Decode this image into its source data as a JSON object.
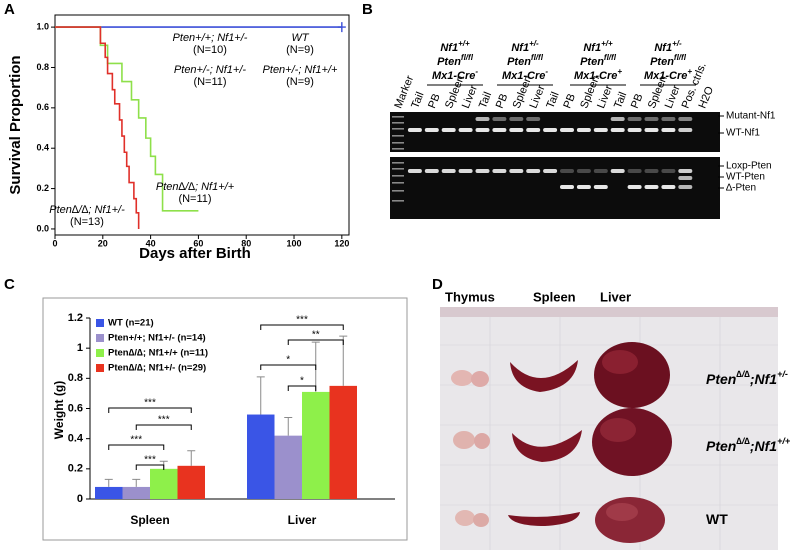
{
  "panel_labels": [
    "A",
    "B",
    "C",
    "D"
  ],
  "chart_data": [
    {
      "type": "step",
      "xlabel": "Days after Birth",
      "ylabel": "Survival Proportion",
      "xlim": [
        0,
        123
      ],
      "ylim": [
        -0.03,
        1.06
      ],
      "xticks": [
        0,
        20,
        40,
        60,
        80,
        100,
        120
      ],
      "yticks": [
        {
          "value": 0,
          "label": "0.0"
        },
        {
          "value": 0.2,
          "label": "0.2"
        },
        {
          "value": 0.4,
          "label": "0.4"
        },
        {
          "value": 0.6,
          "label": "0.6"
        },
        {
          "value": 0.8,
          "label": "0.8"
        },
        {
          "value": 1,
          "label": "1.0"
        }
      ],
      "series": [
        {
          "color": "#3b4fd8",
          "x": [
            0,
            120
          ],
          "values": [
            1,
            1
          ],
          "censor": true
        },
        {
          "color": "#8ee04a",
          "x": [
            0,
            19,
            22,
            28,
            32,
            35,
            38,
            40,
            42,
            45,
            60
          ],
          "values": [
            1,
            0.91,
            0.82,
            0.73,
            0.64,
            0.55,
            0.45,
            0.36,
            0.27,
            0.09,
            0.09
          ],
          "censor": false
        },
        {
          "color": "#e0302a",
          "x": [
            0,
            19,
            21,
            22,
            24,
            25,
            27,
            28,
            29,
            30,
            31,
            33,
            34,
            35
          ],
          "values": [
            1,
            0.92,
            0.85,
            0.77,
            0.69,
            0.62,
            0.54,
            0.46,
            0.38,
            0.31,
            0.23,
            0.15,
            0.08,
            0
          ],
          "censor": false
        }
      ],
      "annotations": [
        "Pten+/+; Nf1+/-",
        "(N=10)",
        "WT",
        "(N=9)",
        "Pten+/-; Nf1+/-",
        "(N=11)",
        "Pten+/-; Nf1+/+",
        "(N=9)",
        "Pten∆/∆; Nf1+/+",
        "(N=11)",
        "Pten∆/∆; Nf1+/-",
        "(N=13)"
      ]
    },
    {
      "type": "bar",
      "ylabel": "Weight (g)",
      "categories": [
        "Spleen",
        "Liver"
      ],
      "ylim": [
        0,
        1.2
      ],
      "yticks": [
        0,
        0.2,
        0.4,
        0.6,
        0.8,
        1,
        1.2
      ],
      "legend": "top-left",
      "series": [
        {
          "name": "WT (n=21)",
          "color": "#3a55e6",
          "values": [
            0.08,
            0.56
          ],
          "errors": [
            0.05,
            0.25
          ]
        },
        {
          "name": "Pten+/+; Nf1+/- (n=14)",
          "color": "#9b90cc",
          "values": [
            0.08,
            0.42
          ],
          "errors": [
            0.05,
            0.12
          ]
        },
        {
          "name": "Pten∆/∆; Nf1+/+ (n=11)",
          "color": "#8ef04a",
          "values": [
            0.2,
            0.71
          ],
          "errors": [
            0.05,
            0.33
          ]
        },
        {
          "name": "Pten∆/∆; Nf1+/- (n=29)",
          "color": "#e8331f",
          "values": [
            0.22,
            0.75
          ],
          "errors": [
            0.1,
            0.33
          ]
        }
      ],
      "significance": [
        "***",
        "***",
        "***",
        "***",
        "***",
        "**",
        "*",
        "*"
      ]
    }
  ],
  "gel": {
    "groups": [
      [
        {
          "base": "Nf1",
          "sup": "+/+"
        },
        {
          "base": "Pten",
          "sup": "fl/fl"
        },
        {
          "base": "Mx1-Cre",
          "sup": "-"
        }
      ],
      [
        {
          "base": "Nf1",
          "sup": "+/-"
        },
        {
          "base": "Pten",
          "sup": "fl/fl"
        },
        {
          "base": "Mx1-Cre",
          "sup": "-"
        }
      ],
      [
        {
          "base": "Nf1",
          "sup": "+/+"
        },
        {
          "base": "Pten",
          "sup": "fl/fl"
        },
        {
          "base": "Mx1-Cre",
          "sup": "+"
        }
      ],
      [
        {
          "base": "Nf1",
          "sup": "+/-"
        },
        {
          "base": "Pten",
          "sup": "fl/fl"
        },
        {
          "base": "Mx1-Cre",
          "sup": "+"
        }
      ]
    ],
    "lanes": [
      "Marker",
      "Tail",
      "PB",
      "Spleen",
      "Liver",
      "Tail",
      "PB",
      "Spleen",
      "Liver",
      "Tail",
      "PB",
      "Spleen",
      "Liver",
      "Tail",
      "PB",
      "Spleen",
      "Liver",
      "Pos. ctrls.",
      "H2O"
    ],
    "bands": [
      "Mutant-Nf1",
      "WT-Nf1",
      "Loxp-Pten",
      "WT-Pten",
      "∆-Pten"
    ]
  },
  "photo": {
    "organs": [
      "Thymus",
      "Spleen",
      "Liver"
    ],
    "genotypes": [
      {
        "base": "Pten",
        "sup": "∆/∆",
        "mid": ";Nf1",
        "sup2": "+/-"
      },
      {
        "base": "Pten",
        "sup": "∆/∆",
        "mid": ";Nf1",
        "sup2": "+/+"
      },
      {
        "base": "WT"
      }
    ]
  }
}
